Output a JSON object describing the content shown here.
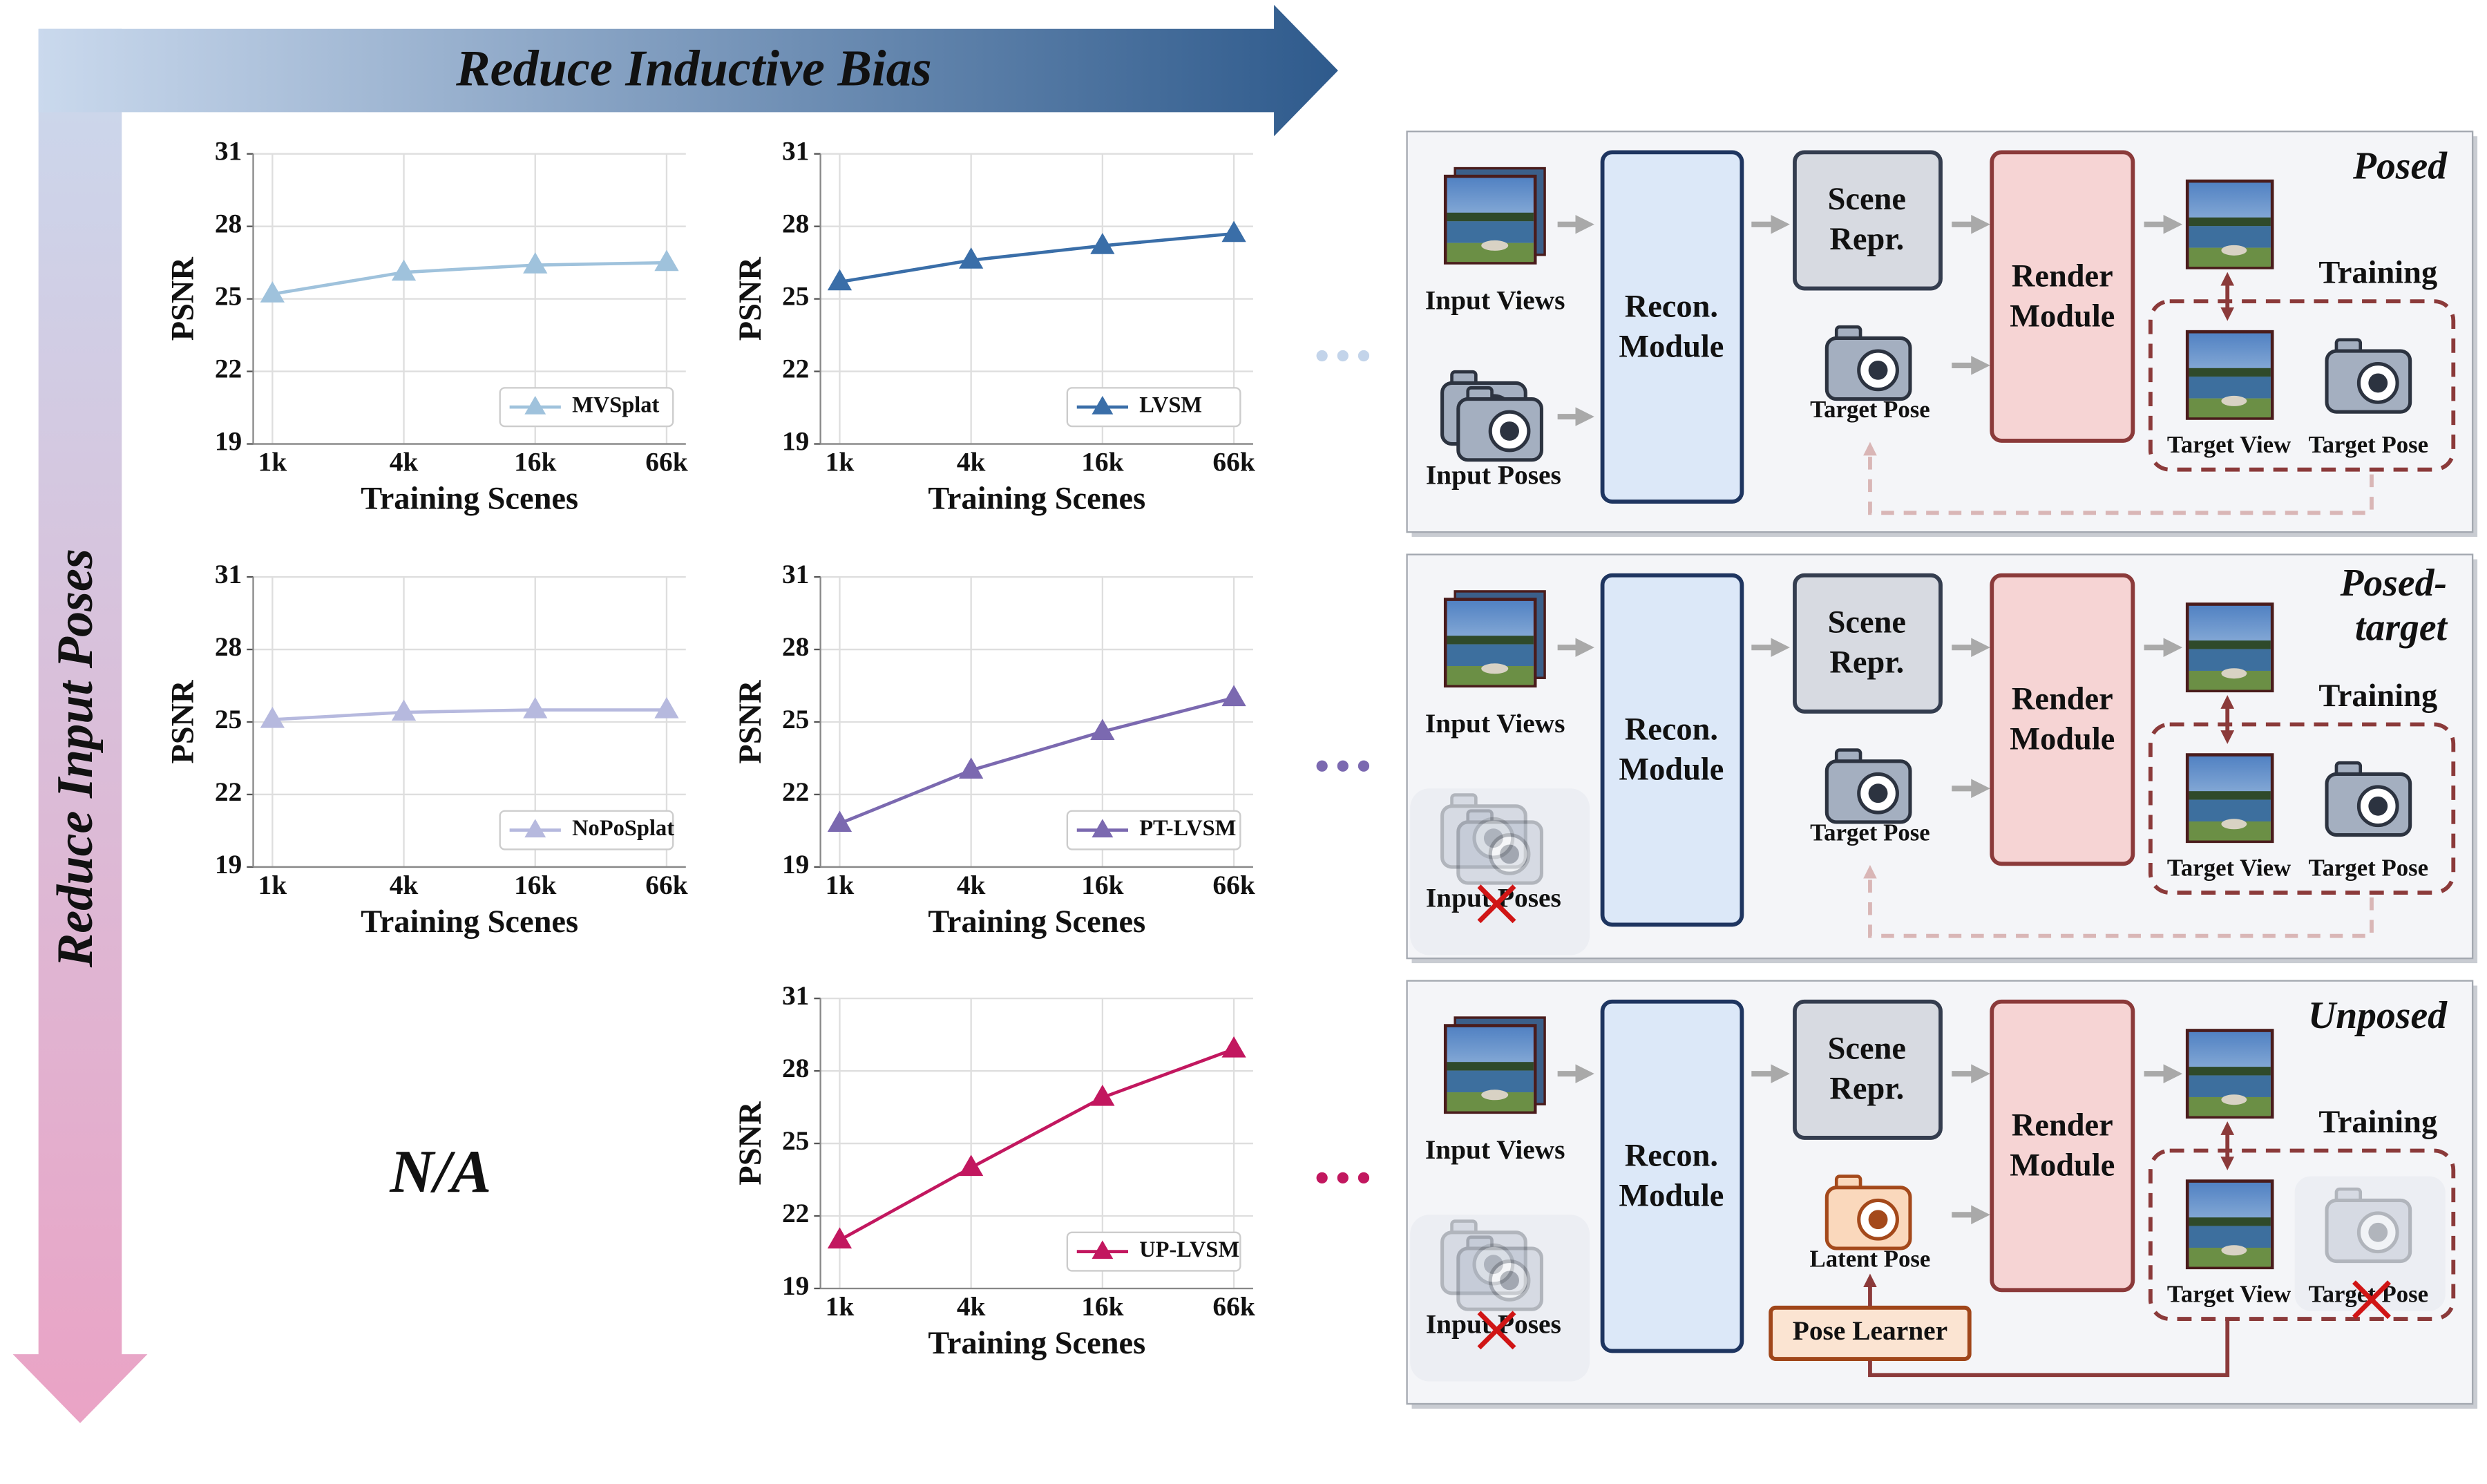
{
  "chart_data": [
    {
      "type": "line",
      "categories": [
        "1k",
        "4k",
        "16k",
        "66k"
      ],
      "series": [
        {
          "name": "MVSplat",
          "color": "#9fc2dc",
          "values": [
            25.2,
            26.1,
            26.4,
            26.5
          ]
        }
      ],
      "xlabel": "Training Scenes",
      "ylabel": "PSNR",
      "ylim": [
        19,
        31
      ],
      "yticks": [
        19,
        22,
        25,
        28,
        31
      ],
      "grid": true,
      "legend": "lower right",
      "marker": "triangle"
    },
    {
      "type": "line",
      "categories": [
        "1k",
        "4k",
        "16k",
        "66k"
      ],
      "series": [
        {
          "name": "LVSM",
          "color": "#3a6ea8",
          "values": [
            25.7,
            26.6,
            27.2,
            27.7
          ]
        }
      ],
      "xlabel": "Training Scenes",
      "ylabel": "PSNR",
      "ylim": [
        19,
        31
      ],
      "yticks": [
        19,
        22,
        25,
        28,
        31
      ],
      "grid": true,
      "legend": "lower right",
      "marker": "triangle"
    },
    {
      "type": "line",
      "categories": [
        "1k",
        "4k",
        "16k",
        "66k"
      ],
      "series": [
        {
          "name": "NoPoSplat",
          "color": "#b6b9de",
          "values": [
            25.1,
            25.4,
            25.5,
            25.5
          ]
        }
      ],
      "xlabel": "Training Scenes",
      "ylabel": "PSNR",
      "ylim": [
        19,
        31
      ],
      "yticks": [
        19,
        22,
        25,
        28,
        31
      ],
      "grid": true,
      "legend": "lower right",
      "marker": "triangle"
    },
    {
      "type": "line",
      "categories": [
        "1k",
        "4k",
        "16k",
        "66k"
      ],
      "series": [
        {
          "name": "PT-LVSM",
          "color": "#7b69b0",
          "values": [
            20.8,
            23.0,
            24.6,
            26.0
          ]
        }
      ],
      "xlabel": "Training Scenes",
      "ylabel": "PSNR",
      "ylim": [
        19,
        31
      ],
      "yticks": [
        19,
        22,
        25,
        28,
        31
      ],
      "grid": true,
      "legend": "lower right",
      "marker": "triangle"
    },
    {
      "type": "line",
      "categories": [
        "1k",
        "4k",
        "16k",
        "66k"
      ],
      "series": [
        {
          "name": "UP-LVSM",
          "color": "#c2175f",
          "values": [
            21.0,
            24.0,
            26.9,
            28.9
          ]
        }
      ],
      "xlabel": "Training Scenes",
      "ylabel": "PSNR",
      "ylim": [
        19,
        31
      ],
      "yticks": [
        19,
        22,
        25,
        28,
        31
      ],
      "grid": true,
      "legend": "lower right",
      "marker": "triangle"
    }
  ],
  "arrows": {
    "horizontal": "Reduce Inductive Bias",
    "vertical": "Reduce Input Poses"
  },
  "placeholder": "N/A",
  "panels": [
    {
      "title": [
        "Posed"
      ],
      "input_views": "Input Views",
      "input_poses": "Input Poses",
      "recon": [
        "Recon.",
        "Module"
      ],
      "scene": [
        "Scene",
        "Repr."
      ],
      "target_pose": "Target Pose",
      "render": [
        "Render",
        "Module"
      ],
      "training": "Training",
      "target_view": "Target View",
      "train_pose": "Target Pose"
    },
    {
      "title": [
        "Posed-",
        "target"
      ],
      "input_views": "Input Views",
      "input_poses": "Input Poses",
      "recon": [
        "Recon.",
        "Module"
      ],
      "scene": [
        "Scene",
        "Repr."
      ],
      "target_pose": "Target Pose",
      "render": [
        "Render",
        "Module"
      ],
      "training": "Training",
      "target_view": "Target View",
      "train_pose": "Target Pose"
    },
    {
      "title": [
        "Unposed"
      ],
      "input_views": "Input Views",
      "input_poses": "Input Poses",
      "recon": [
        "Recon.",
        "Module"
      ],
      "scene": [
        "Scene",
        "Repr."
      ],
      "target_pose": "Latent Pose",
      "pose_learner": "Pose Learner",
      "render": [
        "Render",
        "Module"
      ],
      "training": "Training",
      "target_view": "Target View",
      "train_pose": "Target Pose"
    }
  ]
}
